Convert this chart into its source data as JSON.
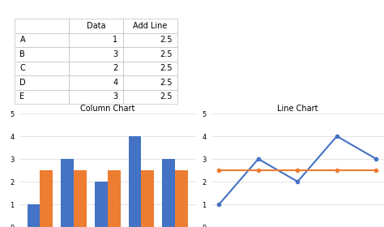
{
  "categories": [
    "A",
    "B",
    "C",
    "D",
    "E"
  ],
  "data_values": [
    1,
    3,
    2,
    4,
    3
  ],
  "add_line_values": [
    2.5,
    2.5,
    2.5,
    2.5,
    2.5
  ],
  "bar_color": "#4472C4",
  "orange_color": "#ED7D31",
  "col_chart_title": "Column Chart",
  "line_chart_title": "Line Chart",
  "table_col1": "Data",
  "table_col2": "Add Line",
  "table_rows": [
    [
      "A",
      "1",
      "2.5"
    ],
    [
      "B",
      "3",
      "2.5"
    ],
    [
      "C",
      "2",
      "2.5"
    ],
    [
      "D",
      "4",
      "2.5"
    ],
    [
      "E",
      "3",
      "2.5"
    ]
  ],
  "ylim": [
    0,
    5
  ],
  "yticks": [
    0,
    1,
    2,
    3,
    4,
    5
  ],
  "bg_color": "#FFFFFF",
  "grid_color": "#D9D9D9",
  "marker_style": "o",
  "marker_size": 3,
  "line_width": 1.5
}
